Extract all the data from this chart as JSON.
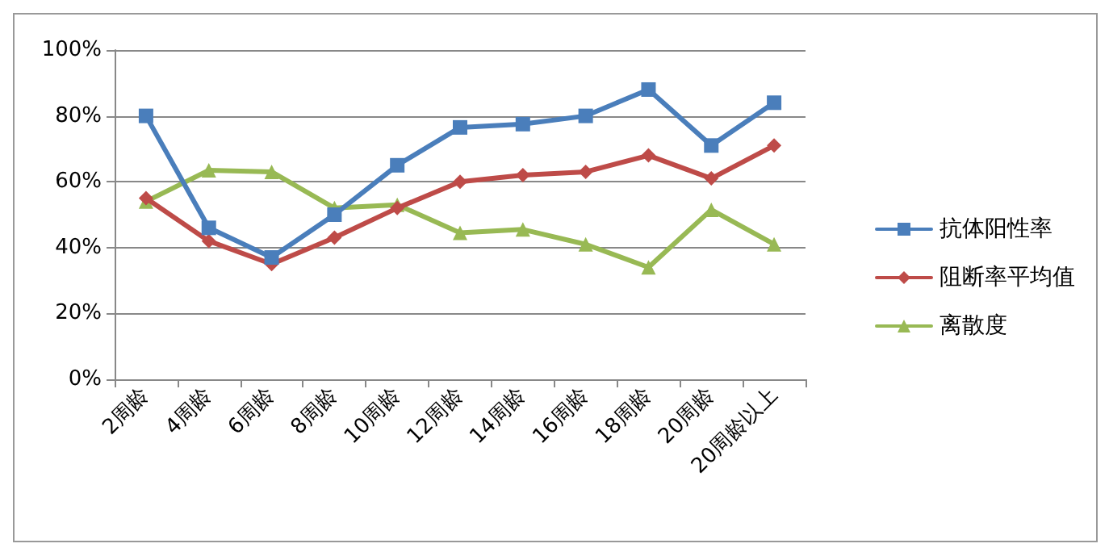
{
  "chart_data": {
    "type": "line",
    "categories": [
      "2周龄",
      "4周龄",
      "6周龄",
      "8周龄",
      "10周龄",
      "12周龄",
      "14周龄",
      "16周龄",
      "18周龄",
      "20周龄",
      "20周龄以上"
    ],
    "series": [
      {
        "name": "抗体阳性率",
        "color": "#4a7ebb",
        "marker": "square",
        "values": [
          80,
          46,
          37,
          50,
          65,
          76.5,
          77.5,
          80,
          88,
          71,
          84
        ]
      },
      {
        "name": "阻断率平均值",
        "color": "#be4b48",
        "marker": "diamond",
        "values": [
          55,
          42,
          35,
          43,
          52,
          60,
          62,
          63,
          68,
          61,
          71
        ]
      },
      {
        "name": "离散度",
        "color": "#98b954",
        "marker": "triangle",
        "values": [
          54,
          63.5,
          63,
          52,
          53,
          44.5,
          45.5,
          41,
          34,
          51.5,
          41
        ]
      }
    ],
    "ylim": [
      0,
      100
    ],
    "yticks": [
      {
        "value": 0,
        "label": "0%"
      },
      {
        "value": 20,
        "label": "20%"
      },
      {
        "value": 40,
        "label": "40%"
      },
      {
        "value": 60,
        "label": "60%"
      },
      {
        "value": 80,
        "label": "80%"
      },
      {
        "value": 100,
        "label": "100%"
      }
    ],
    "grid": "y",
    "legend": "right",
    "line_style": "solid"
  }
}
